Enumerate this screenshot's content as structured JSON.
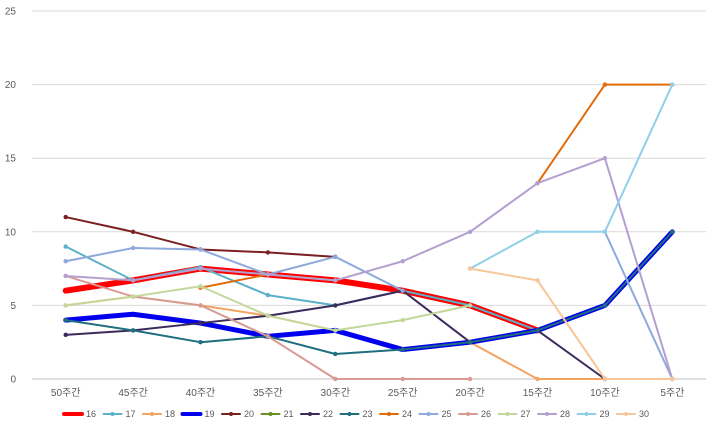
{
  "chart_data": {
    "type": "line",
    "categories": [
      "50주간",
      "45주간",
      "40주간",
      "35주간",
      "30주간",
      "25주간",
      "20주간",
      "15주간",
      "10주간",
      "5주간"
    ],
    "ylim": [
      0,
      25
    ],
    "yticks": [
      0,
      5,
      10,
      15,
      20,
      25
    ],
    "grid": true,
    "legend_position": "bottom",
    "series": [
      {
        "name": "16",
        "color": "#ff0000",
        "values": [
          6.0,
          6.7,
          7.5,
          7.1,
          6.7,
          6.0,
          5.0,
          3.3,
          null,
          null
        ]
      },
      {
        "name": "17",
        "color": "#5bb1c9",
        "values": [
          9.0,
          6.7,
          7.6,
          5.7,
          5.0,
          6.0,
          5.0,
          3.3,
          null,
          null
        ]
      },
      {
        "name": "18",
        "color": "#f4a460",
        "values": [
          5.0,
          5.6,
          5.0,
          4.3,
          3.3,
          2.0,
          2.5,
          0,
          0,
          0
        ]
      },
      {
        "name": "19",
        "color": "#0000ee",
        "values": [
          4.0,
          4.4,
          3.8,
          2.9,
          3.3,
          2.0,
          2.5,
          3.3,
          5.0,
          10.0
        ]
      },
      {
        "name": "20",
        "color": "#7b1f1f",
        "values": [
          11.0,
          10.0,
          8.8,
          8.6,
          8.3,
          null,
          null,
          null,
          null,
          null
        ]
      },
      {
        "name": "21",
        "color": "#6b8e23",
        "values": [
          null,
          null,
          null,
          null,
          null,
          null,
          5.0,
          null,
          null,
          null
        ]
      },
      {
        "name": "22",
        "color": "#3b2a5c",
        "values": [
          3.0,
          3.3,
          3.8,
          4.3,
          5.0,
          6.0,
          2.5,
          3.3,
          0,
          null
        ]
      },
      {
        "name": "23",
        "color": "#1f6f7f",
        "values": [
          4.0,
          3.3,
          2.5,
          2.9,
          1.7,
          2.0,
          2.5,
          3.3,
          5.0,
          10.0
        ]
      },
      {
        "name": "24",
        "color": "#e36c0a",
        "values": [
          null,
          null,
          6.2,
          7.1,
          6.7,
          null,
          null,
          13.3,
          20.0,
          20.0
        ]
      },
      {
        "name": "25",
        "color": "#8ea9db",
        "values": [
          8.0,
          8.9,
          8.8,
          7.1,
          8.3,
          6.0,
          null,
          null,
          10.0,
          0
        ]
      },
      {
        "name": "26",
        "color": "#d89a93",
        "values": [
          7.0,
          5.6,
          5.0,
          2.9,
          0,
          0,
          0,
          null,
          null,
          null
        ]
      },
      {
        "name": "27",
        "color": "#c4d79b",
        "values": [
          5.0,
          5.6,
          6.3,
          4.3,
          3.3,
          4.0,
          5.0,
          null,
          null,
          null
        ]
      },
      {
        "name": "28",
        "color": "#b4a0d0",
        "values": [
          7.0,
          6.7,
          7.5,
          7.1,
          6.7,
          8.0,
          10.0,
          13.3,
          15.0,
          0
        ]
      },
      {
        "name": "29",
        "color": "#8fd0e8",
        "values": [
          null,
          null,
          null,
          null,
          null,
          null,
          7.5,
          10.0,
          10.0,
          20.0
        ]
      },
      {
        "name": "30",
        "color": "#f7c79a",
        "values": [
          null,
          null,
          null,
          null,
          null,
          null,
          7.5,
          6.7,
          0,
          0
        ]
      }
    ]
  }
}
